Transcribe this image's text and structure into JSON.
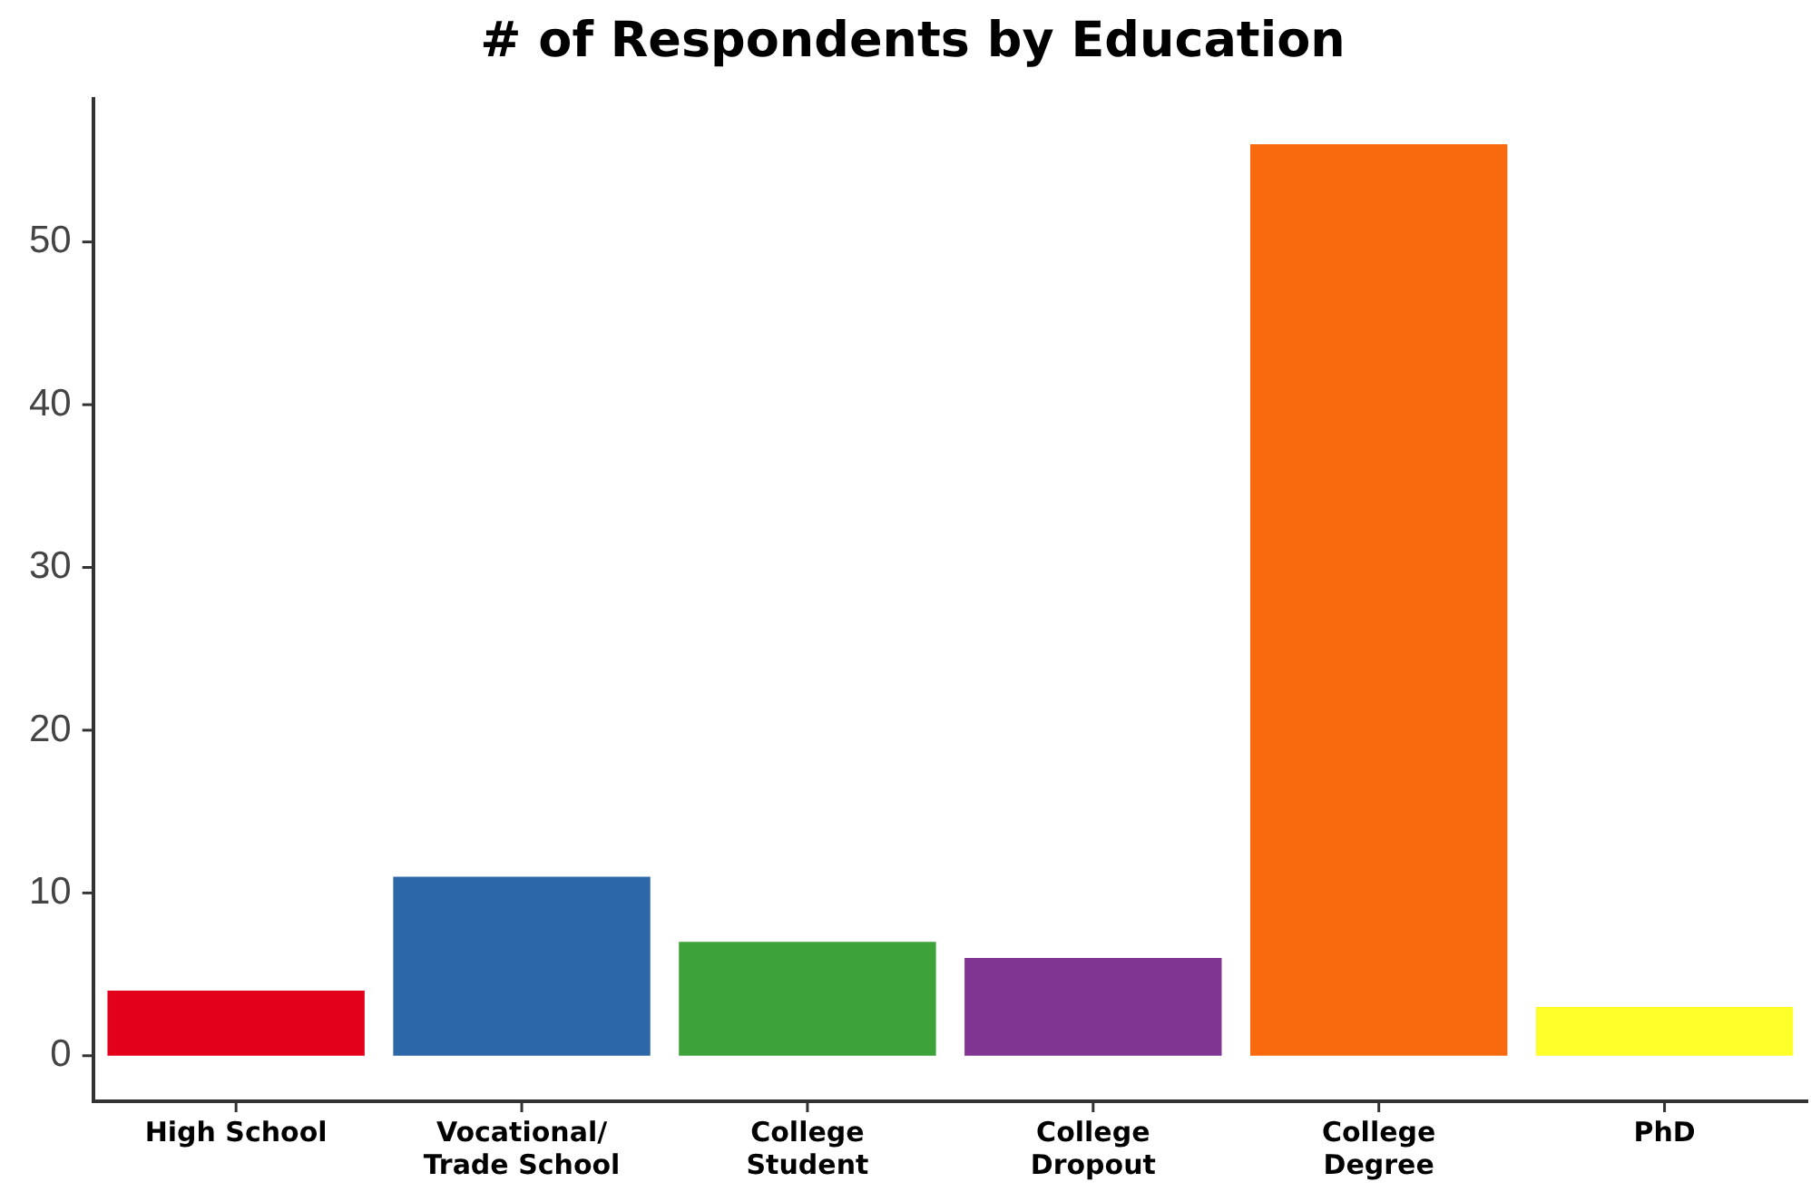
{
  "chart_data": {
    "type": "bar",
    "title": "# of Respondents by Education",
    "categories": [
      "High School",
      "Vocational/\nTrade School",
      "College\nStudent",
      "College\nDropout",
      "College\nDegree",
      "PhD"
    ],
    "values": [
      4,
      11,
      7,
      6,
      56,
      3
    ],
    "colors": [
      "#e3001b",
      "#2c68a8",
      "#3ea23a",
      "#803592",
      "#f9690e",
      "#ffff2a"
    ],
    "ylim": [
      -2.8,
      58.8
    ],
    "yticks": [
      0,
      10,
      20,
      30,
      40,
      50
    ],
    "grid": false,
    "legend": false
  }
}
